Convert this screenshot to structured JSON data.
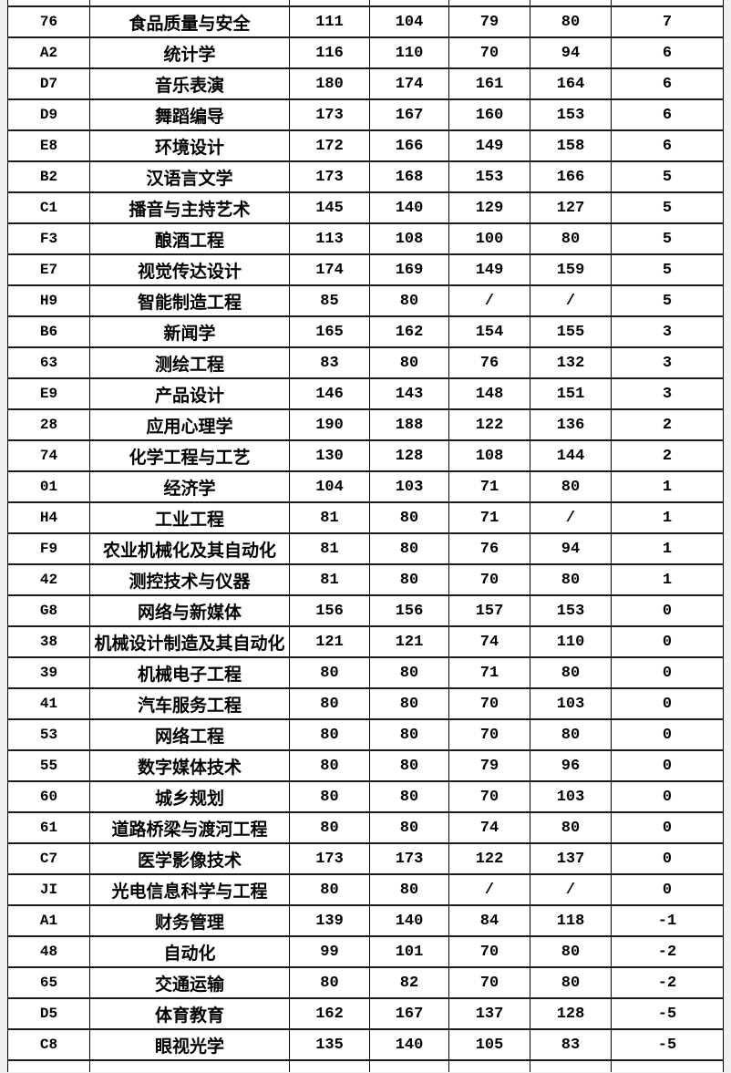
{
  "table": {
    "border_color": "#000000",
    "cell_background": "#ffffff",
    "page_background": "#f0f0f0",
    "missing_value_symbol": "/",
    "rows": [
      {
        "code": "76",
        "name": "食品质量与安全",
        "values": [
          "111",
          "104",
          "79",
          "80"
        ],
        "diff": "7"
      },
      {
        "code": "A2",
        "name": "统计学",
        "values": [
          "116",
          "110",
          "70",
          "94"
        ],
        "diff": "6"
      },
      {
        "code": "D7",
        "name": "音乐表演",
        "values": [
          "180",
          "174",
          "161",
          "164"
        ],
        "diff": "6"
      },
      {
        "code": "D9",
        "name": "舞蹈编导",
        "values": [
          "173",
          "167",
          "160",
          "153"
        ],
        "diff": "6"
      },
      {
        "code": "E8",
        "name": "环境设计",
        "values": [
          "172",
          "166",
          "149",
          "158"
        ],
        "diff": "6"
      },
      {
        "code": "B2",
        "name": "汉语言文学",
        "values": [
          "173",
          "168",
          "153",
          "166"
        ],
        "diff": "5"
      },
      {
        "code": "C1",
        "name": "播音与主持艺术",
        "values": [
          "145",
          "140",
          "129",
          "127"
        ],
        "diff": "5"
      },
      {
        "code": "F3",
        "name": "酿酒工程",
        "values": [
          "113",
          "108",
          "100",
          "80"
        ],
        "diff": "5"
      },
      {
        "code": "E7",
        "name": "视觉传达设计",
        "values": [
          "174",
          "169",
          "149",
          "159"
        ],
        "diff": "5"
      },
      {
        "code": "H9",
        "name": "智能制造工程",
        "values": [
          "85",
          "80",
          "/",
          "/"
        ],
        "diff": "5"
      },
      {
        "code": "B6",
        "name": "新闻学",
        "values": [
          "165",
          "162",
          "154",
          "155"
        ],
        "diff": "3"
      },
      {
        "code": "63",
        "name": "测绘工程",
        "values": [
          "83",
          "80",
          "76",
          "132"
        ],
        "diff": "3"
      },
      {
        "code": "E9",
        "name": "产品设计",
        "values": [
          "146",
          "143",
          "148",
          "151"
        ],
        "diff": "3"
      },
      {
        "code": "28",
        "name": "应用心理学",
        "values": [
          "190",
          "188",
          "122",
          "136"
        ],
        "diff": "2"
      },
      {
        "code": "74",
        "name": "化学工程与工艺",
        "values": [
          "130",
          "128",
          "108",
          "144"
        ],
        "diff": "2"
      },
      {
        "code": "01",
        "name": "经济学",
        "values": [
          "104",
          "103",
          "71",
          "80"
        ],
        "diff": "1"
      },
      {
        "code": "H4",
        "name": "工业工程",
        "values": [
          "81",
          "80",
          "71",
          "/"
        ],
        "diff": "1"
      },
      {
        "code": "F9",
        "name": "农业机械化及其自动化",
        "values": [
          "81",
          "80",
          "76",
          "94"
        ],
        "diff": "1"
      },
      {
        "code": "42",
        "name": "测控技术与仪器",
        "values": [
          "81",
          "80",
          "70",
          "80"
        ],
        "diff": "1"
      },
      {
        "code": "G8",
        "name": "网络与新媒体",
        "values": [
          "156",
          "156",
          "157",
          "153"
        ],
        "diff": "0"
      },
      {
        "code": "38",
        "name": "机械设计制造及其自动化",
        "values": [
          "121",
          "121",
          "74",
          "110"
        ],
        "diff": "0"
      },
      {
        "code": "39",
        "name": "机械电子工程",
        "values": [
          "80",
          "80",
          "71",
          "80"
        ],
        "diff": "0"
      },
      {
        "code": "41",
        "name": "汽车服务工程",
        "values": [
          "80",
          "80",
          "70",
          "103"
        ],
        "diff": "0"
      },
      {
        "code": "53",
        "name": "网络工程",
        "values": [
          "80",
          "80",
          "70",
          "80"
        ],
        "diff": "0"
      },
      {
        "code": "55",
        "name": "数字媒体技术",
        "values": [
          "80",
          "80",
          "79",
          "96"
        ],
        "diff": "0"
      },
      {
        "code": "60",
        "name": "城乡规划",
        "values": [
          "80",
          "80",
          "70",
          "103"
        ],
        "diff": "0"
      },
      {
        "code": "61",
        "name": "道路桥梁与渡河工程",
        "values": [
          "80",
          "80",
          "74",
          "80"
        ],
        "diff": "0"
      },
      {
        "code": "C7",
        "name": "医学影像技术",
        "values": [
          "173",
          "173",
          "122",
          "137"
        ],
        "diff": "0"
      },
      {
        "code": "JI",
        "name": "光电信息科学与工程",
        "values": [
          "80",
          "80",
          "/",
          "/"
        ],
        "diff": "0"
      },
      {
        "code": "A1",
        "name": "财务管理",
        "values": [
          "139",
          "140",
          "84",
          "118"
        ],
        "diff": "-1"
      },
      {
        "code": "48",
        "name": "自动化",
        "values": [
          "99",
          "101",
          "70",
          "80"
        ],
        "diff": "-2"
      },
      {
        "code": "65",
        "name": "交通运输",
        "values": [
          "80",
          "82",
          "70",
          "80"
        ],
        "diff": "-2"
      },
      {
        "code": "D5",
        "name": "体育教育",
        "values": [
          "162",
          "167",
          "137",
          "128"
        ],
        "diff": "-5"
      },
      {
        "code": "C8",
        "name": "眼视光学",
        "values": [
          "135",
          "140",
          "105",
          "83"
        ],
        "diff": "-5"
      }
    ]
  }
}
